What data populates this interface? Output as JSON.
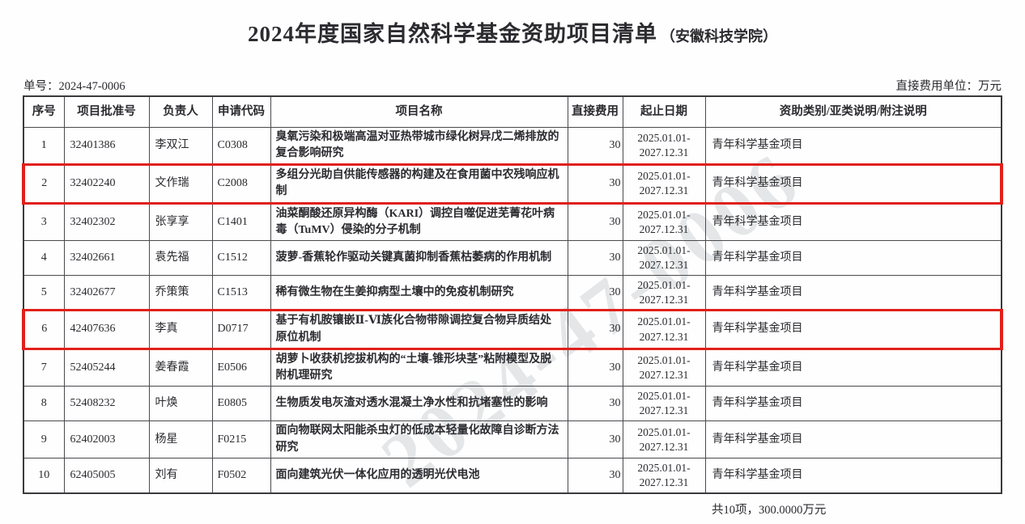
{
  "page": {
    "title": "2024年度国家自然科学基金资助项目清单",
    "title_suffix": "（安徽科技学院）",
    "doc_no": "单号：2024-47-0006",
    "unit_note": "直接费用单位：万元",
    "summary": "共10项，300.0000万元",
    "watermark": "2024-47-0006",
    "highlight_color": "#e0201a"
  },
  "table": {
    "headers": {
      "seq": "序号",
      "approval_no": "项目批准号",
      "leader": "负责人",
      "code": "申请代码",
      "name": "项目名称",
      "fee": "直接费用",
      "period": "起止日期",
      "category": "资助类别/亚类说明/附注说明"
    },
    "rows": [
      {
        "seq": "1",
        "approval_no": "32401386",
        "leader": "李双江",
        "code": "C0308",
        "name": "臭氧污染和极端高温对亚热带城市绿化树异戊二烯排放的复合影响研究",
        "fee": "30",
        "period_line1": "2025.01.01-",
        "period_line2": "2027.12.31",
        "category": "青年科学基金项目",
        "highlighted": false
      },
      {
        "seq": "2",
        "approval_no": "32402240",
        "leader": "文作瑞",
        "code": "C2008",
        "name": "多组分光助自供能传感器的构建及在食用菌中农残响应机制",
        "fee": "30",
        "period_line1": "2025.01.01-",
        "period_line2": "2027.12.31",
        "category": "青年科学基金项目",
        "highlighted": true
      },
      {
        "seq": "3",
        "approval_no": "32402302",
        "leader": "张享享",
        "code": "C1401",
        "name": "油菜酮酸还原异构酶（KARI）调控自噬促进芜菁花叶病毒（TuMV）侵染的分子机制",
        "fee": "30",
        "period_line1": "2025.01.01-",
        "period_line2": "2027.12.31",
        "category": "青年科学基金项目",
        "highlighted": false
      },
      {
        "seq": "4",
        "approval_no": "32402661",
        "leader": "袁先福",
        "code": "C1512",
        "name": "菠萝-香蕉轮作驱动关键真菌抑制香蕉枯萎病的作用机制",
        "fee": "30",
        "period_line1": "2025.01.01-",
        "period_line2": "2027.12.31",
        "category": "青年科学基金项目",
        "highlighted": false
      },
      {
        "seq": "5",
        "approval_no": "32402677",
        "leader": "乔策策",
        "code": "C1513",
        "name": "稀有微生物在生姜抑病型土壤中的免疫机制研究",
        "fee": "30",
        "period_line1": "2025.01.01-",
        "period_line2": "2027.12.31",
        "category": "青年科学基金项目",
        "highlighted": false
      },
      {
        "seq": "6",
        "approval_no": "42407636",
        "leader": "李真",
        "code": "D0717",
        "name": "基于有机胺镶嵌Ⅱ-Ⅵ族化合物带隙调控复合物异质结处原位机制",
        "fee": "30",
        "period_line1": "2025.01.01-",
        "period_line2": "2027.12.31",
        "category": "青年科学基金项目",
        "highlighted": true
      },
      {
        "seq": "7",
        "approval_no": "52405244",
        "leader": "姜春霞",
        "code": "E0506",
        "name": "胡萝卜收获机挖拔机构的“土壤-锥形块茎”粘附模型及脱附机理研究",
        "fee": "30",
        "period_line1": "2025.01.01-",
        "period_line2": "2027.12.31",
        "category": "青年科学基金项目",
        "highlighted": false
      },
      {
        "seq": "8",
        "approval_no": "52408232",
        "leader": "叶焕",
        "code": "E0805",
        "name": "生物质发电灰渣对透水混凝土净水性和抗堵塞性的影响",
        "fee": "30",
        "period_line1": "2025.01.01-",
        "period_line2": "2027.12.31",
        "category": "青年科学基金项目",
        "highlighted": false
      },
      {
        "seq": "9",
        "approval_no": "62402003",
        "leader": "杨星",
        "code": "F0215",
        "name": "面向物联网太阳能杀虫灯的低成本轻量化故障自诊断方法研究",
        "fee": "30",
        "period_line1": "2025.01.01-",
        "period_line2": "2027.12.31",
        "category": "青年科学基金项目",
        "highlighted": false
      },
      {
        "seq": "10",
        "approval_no": "62405005",
        "leader": "刘有",
        "code": "F0502",
        "name": "面向建筑光伏一体化应用的透明光伏电池",
        "fee": "30",
        "period_line1": "2025.01.01-",
        "period_line2": "2027.12.31",
        "category": "青年科学基金项目",
        "highlighted": false
      }
    ]
  }
}
